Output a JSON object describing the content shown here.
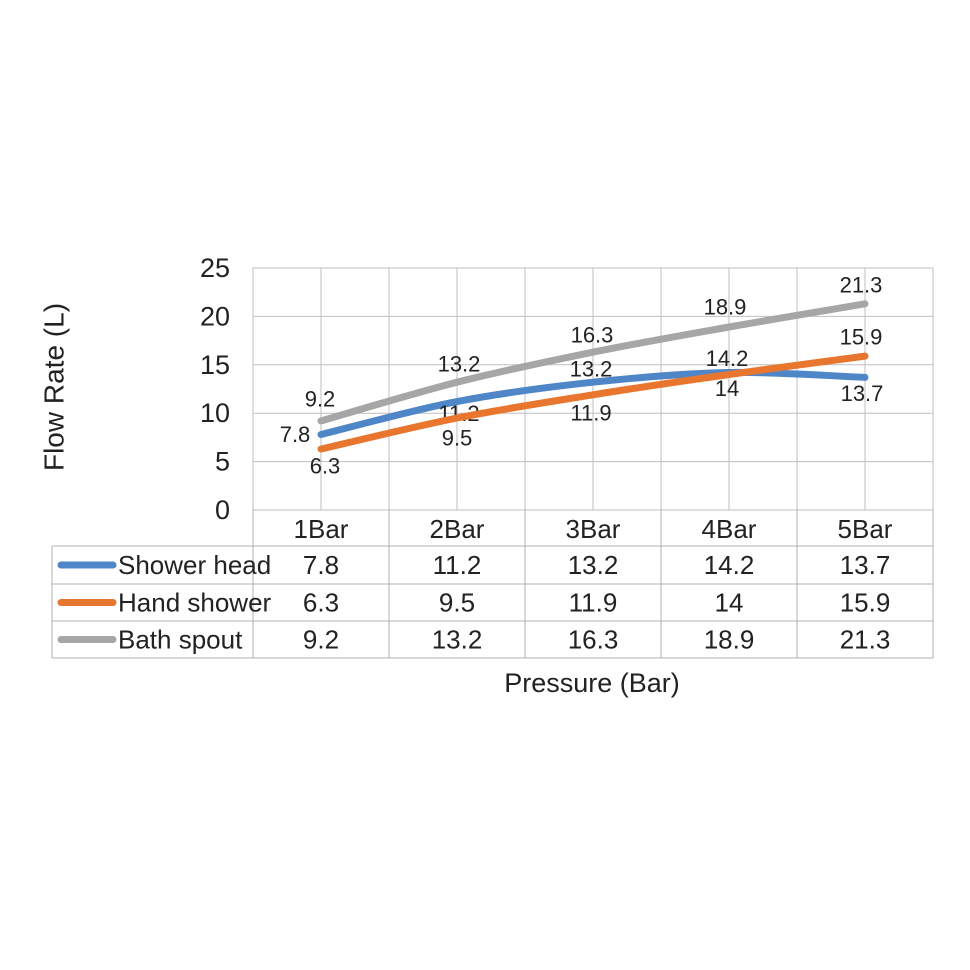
{
  "chart_data": {
    "type": "line",
    "title": "",
    "x_axis_title": "Pressure (Bar)",
    "y_axis_title": "Flow Rate (L)",
    "categories": [
      "1Bar",
      "2Bar",
      "3Bar",
      "4Bar",
      "5Bar"
    ],
    "y_tick_labels": [
      "25",
      "20",
      "15",
      "10",
      "5",
      "0"
    ],
    "ylim": [
      0,
      25
    ],
    "y_step": 5,
    "grid": true,
    "smooth_lines": true,
    "legend_position": "data-table-left",
    "series": [
      {
        "name": "Shower head",
        "color": "#4E86C8",
        "values": [
          7.8,
          11.2,
          13.2,
          14.2,
          13.7
        ],
        "label_offsets": [
          [
            -26,
            0
          ],
          [
            2,
            12
          ],
          [
            -2,
            -13
          ],
          [
            -2,
            -14
          ],
          [
            -3,
            16
          ]
        ]
      },
      {
        "name": "Hand shower",
        "color": "#E8762F",
        "values": [
          6.3,
          9.5,
          11.9,
          14,
          15.9
        ],
        "label_offsets": [
          [
            4,
            17
          ],
          [
            0,
            20
          ],
          [
            -2,
            18
          ],
          [
            -2,
            14
          ],
          [
            -4,
            -19
          ]
        ]
      },
      {
        "name": "Bath spout",
        "color": "#A6A6A6",
        "values": [
          9.2,
          13.2,
          16.3,
          18.9,
          21.3
        ],
        "label_offsets": [
          [
            -1,
            -22
          ],
          [
            2,
            -18
          ],
          [
            -1,
            -17
          ],
          [
            -4,
            -20
          ],
          [
            -4,
            -19
          ]
        ]
      }
    ]
  },
  "colors": {
    "text": "#222222",
    "grid": "#BFBFBF",
    "table_border": "#B0B0B0",
    "background": "#FFFFFF"
  }
}
